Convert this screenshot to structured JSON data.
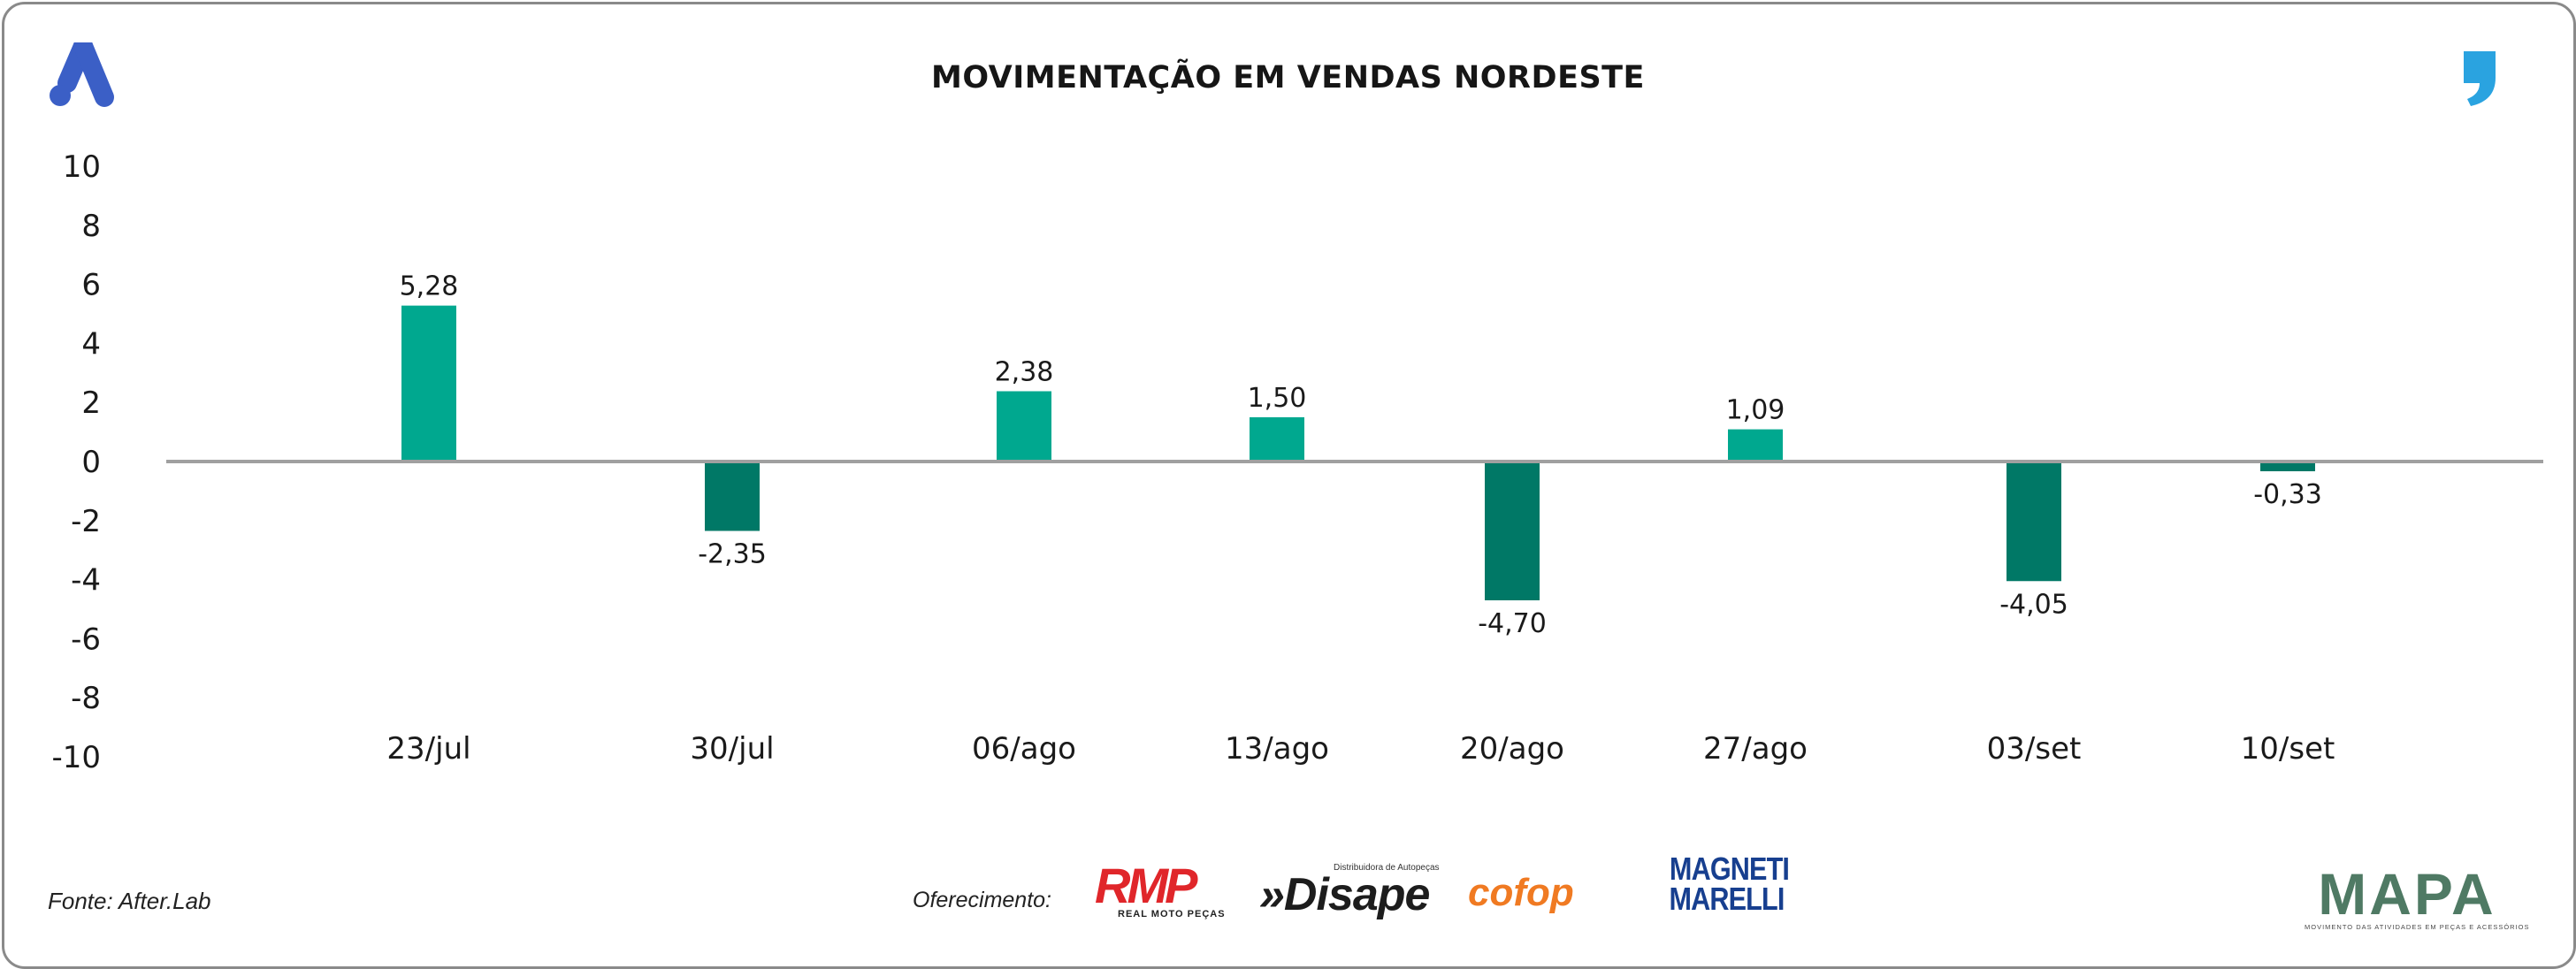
{
  "title": "MOVIMENTAÇÃO EM VENDAS NORDESTE",
  "source": "Fonte: After.Lab",
  "sponsor_label": "Oferecimento:",
  "colors": {
    "positive": "#00a88f",
    "negative": "#007866",
    "axis": "#a0a0a0",
    "brand_blue": "#3b5fc6",
    "quote_blue": "#2aa3e0"
  },
  "icons": {
    "brand_logo": "letter-a-logo-icon",
    "quote": "quote-icon"
  },
  "sponsors": {
    "rmp": {
      "mark": "RMP",
      "sub": "REAL MOTO PEÇAS"
    },
    "disape": {
      "sub": "Distribuidora de Autopeças",
      "mark": "»Disape"
    },
    "cofop": {
      "mark": "cofop"
    },
    "magneti": {
      "line1": "MAGNETI",
      "line2": "MARELLI"
    },
    "mapa": {
      "mark": "MAPA",
      "sub": "MOVIMENTO DAS ATIVIDADES EM PEÇAS E ACESSÓRIOS"
    }
  },
  "chart_data": {
    "type": "bar",
    "title": "MOVIMENTAÇÃO EM VENDAS NORDESTE",
    "xlabel": "",
    "ylabel": "",
    "categories": [
      "23/jul",
      "30/jul",
      "06/ago",
      "13/ago",
      "20/ago",
      "27/ago",
      "03/set",
      "10/set"
    ],
    "values": [
      5.28,
      -2.35,
      2.38,
      1.5,
      -4.7,
      1.09,
      -4.05,
      -0.33
    ],
    "value_labels": [
      "5,28",
      "-2,35",
      "2,38",
      "1,50",
      "-4,70",
      "1,09",
      "-4,05",
      "-0,33"
    ],
    "ylim": [
      -10,
      10
    ],
    "yticks": [
      10,
      8,
      6,
      4,
      2,
      0,
      -2,
      -4,
      -6,
      -8,
      -10
    ],
    "grid": false,
    "legend": "none"
  }
}
